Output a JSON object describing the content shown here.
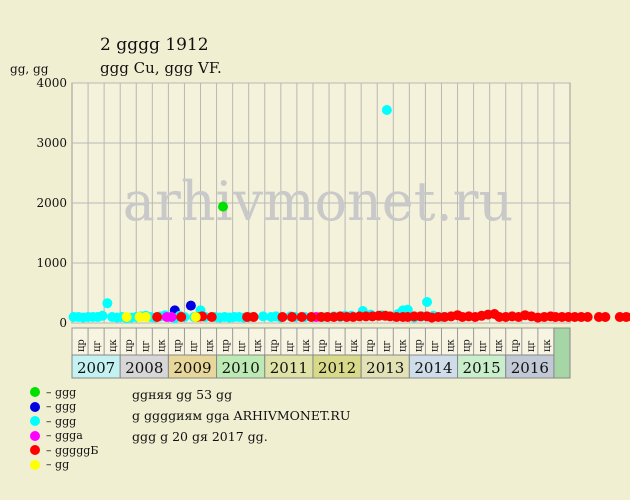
{
  "title_line1": "2 ցցցց 1912",
  "title_line2": "ցցց Cu, ցցց VF.",
  "ylabel": "ցց, ցց",
  "watermark": "arhivmonet.ru",
  "legend": [
    {
      "label": "– ցցց",
      "color": "#00e000"
    },
    {
      "label": "– ցցց",
      "color": "#0000e0"
    },
    {
      "label": "– ցցց",
      "color": "#00ffff"
    },
    {
      "label": "– ցցցa",
      "color": "#ff00ff"
    },
    {
      "label": "– ցցցցցБ",
      "color": "#ff0000"
    },
    {
      "label": "– ցց",
      "color": "#ffff00"
    }
  ],
  "info": {
    "line1": "ցցняя ցց 53 ցց",
    "line2": "ց ցցցցиям ցցa ARHIVMONET.RU",
    "line3": "ցցց ց 20 ցя 2017 ցց."
  },
  "chart_data": {
    "type": "scatter",
    "ylim": [
      0,
      4000
    ],
    "yticks": [
      0,
      1000,
      2000,
      3000,
      4000
    ],
    "grid": true,
    "years": [
      {
        "year": "2007",
        "color": "#c4f1f1"
      },
      {
        "year": "2008",
        "color": "#d7d7d7"
      },
      {
        "year": "2009",
        "color": "#e8d79a"
      },
      {
        "year": "2010",
        "color": "#bdeab4"
      },
      {
        "year": "2011",
        "color": "#dfe3a8"
      },
      {
        "year": "2012",
        "color": "#d9d98a"
      },
      {
        "year": "2013",
        "color": "#e2e2b6"
      },
      {
        "year": "2014",
        "color": "#cfdcea"
      },
      {
        "year": "2015",
        "color": "#c8eecb"
      },
      {
        "year": "2016",
        "color": "#c2c9d6"
      }
    ],
    "last_column_color": "#a6d6a6",
    "periods": [
      "цр",
      "цг",
      "цк",
      "цр",
      "цг",
      "цк",
      "цр",
      "цг",
      "цк",
      "цр",
      "цг",
      "цк",
      "цр",
      "цг",
      "цк",
      "цр",
      "цг",
      "цк",
      "цр",
      "цг",
      "цк",
      "цр",
      "цг",
      "цк",
      "цр",
      "цг",
      "цк",
      "цр",
      "цг",
      "цк"
    ],
    "series": [
      {
        "name": "ցցց",
        "color": "#00e000",
        "points": [
          [
            9.4,
            1940
          ]
        ]
      },
      {
        "name": "ցցց",
        "color": "#0000e0",
        "points": [
          [
            6.4,
            210
          ],
          [
            7.4,
            290
          ]
        ]
      },
      {
        "name": "ցցց",
        "color": "#00ffff",
        "points": [
          [
            0.1,
            100
          ],
          [
            0.4,
            100
          ],
          [
            0.7,
            90
          ],
          [
            1.0,
            100
          ],
          [
            1.3,
            100
          ],
          [
            1.6,
            100
          ],
          [
            1.9,
            120
          ],
          [
            2.2,
            330
          ],
          [
            2.5,
            100
          ],
          [
            2.8,
            90
          ],
          [
            3.1,
            100
          ],
          [
            3.4,
            80
          ],
          [
            3.7,
            90
          ],
          [
            4.0,
            100
          ],
          [
            4.3,
            110
          ],
          [
            4.6,
            120
          ],
          [
            4.9,
            100
          ],
          [
            5.2,
            90
          ],
          [
            5.5,
            110
          ],
          [
            5.8,
            130
          ],
          [
            6.1,
            100
          ],
          [
            6.4,
            80
          ],
          [
            6.7,
            120
          ],
          [
            7.0,
            100
          ],
          [
            7.6,
            100
          ],
          [
            8.0,
            210
          ],
          [
            8.3,
            100
          ],
          [
            8.9,
            100
          ],
          [
            9.2,
            90
          ],
          [
            9.5,
            100
          ],
          [
            9.8,
            90
          ],
          [
            10.1,
            100
          ],
          [
            10.4,
            100
          ],
          [
            10.7,
            90
          ],
          [
            11.0,
            100
          ],
          [
            11.3,
            100
          ],
          [
            11.9,
            110
          ],
          [
            12.4,
            100
          ],
          [
            12.7,
            110
          ],
          [
            13.0,
            90
          ],
          [
            13.6,
            110
          ],
          [
            13.9,
            100
          ],
          [
            14.5,
            100
          ],
          [
            15.6,
            100
          ],
          [
            16.3,
            110
          ],
          [
            16.7,
            100
          ],
          [
            17.0,
            120
          ],
          [
            17.4,
            120
          ],
          [
            18.1,
            200
          ],
          [
            18.6,
            140
          ],
          [
            19.3,
            130
          ],
          [
            19.6,
            3550
          ],
          [
            20.3,
            150
          ],
          [
            20.6,
            210
          ],
          [
            20.9,
            220
          ],
          [
            21.3,
            90
          ],
          [
            21.8,
            110
          ],
          [
            22.1,
            350
          ],
          [
            22.5,
            120
          ],
          [
            23.1,
            100
          ]
        ]
      },
      {
        "name": "ցցցa",
        "color": "#ff00ff",
        "points": [
          [
            5.9,
            100
          ],
          [
            6.2,
            100
          ],
          [
            15.2,
            100
          ]
        ]
      },
      {
        "name": "ցցցցցБ",
        "color": "#ff0000",
        "points": [
          [
            5.3,
            100
          ],
          [
            6.8,
            100
          ],
          [
            7.8,
            100
          ],
          [
            8.1,
            110
          ],
          [
            8.7,
            100
          ],
          [
            10.9,
            100
          ],
          [
            11.3,
            100
          ],
          [
            13.1,
            100
          ],
          [
            13.7,
            100
          ],
          [
            14.3,
            100
          ],
          [
            14.9,
            100
          ],
          [
            15.5,
            100
          ],
          [
            15.9,
            100
          ],
          [
            16.3,
            100
          ],
          [
            16.7,
            110
          ],
          [
            17.1,
            100
          ],
          [
            17.5,
            100
          ],
          [
            17.9,
            110
          ],
          [
            18.3,
            110
          ],
          [
            18.7,
            110
          ],
          [
            19.1,
            120
          ],
          [
            19.5,
            120
          ],
          [
            19.8,
            110
          ],
          [
            20.2,
            100
          ],
          [
            20.6,
            100
          ],
          [
            20.9,
            100
          ],
          [
            21.3,
            110
          ],
          [
            21.7,
            110
          ],
          [
            22.1,
            110
          ],
          [
            22.4,
            90
          ],
          [
            22.8,
            100
          ],
          [
            23.2,
            100
          ],
          [
            23.6,
            110
          ],
          [
            24.0,
            130
          ],
          [
            24.3,
            100
          ],
          [
            24.7,
            110
          ],
          [
            25.1,
            100
          ],
          [
            25.5,
            120
          ],
          [
            25.9,
            140
          ],
          [
            26.3,
            150
          ],
          [
            26.6,
            100
          ],
          [
            27.0,
            100
          ],
          [
            27.4,
            110
          ],
          [
            27.8,
            100
          ],
          [
            28.2,
            130
          ],
          [
            28.6,
            110
          ],
          [
            29.0,
            90
          ],
          [
            29.4,
            100
          ],
          [
            29.8,
            110
          ],
          [
            30.1,
            100
          ],
          [
            30.5,
            100
          ],
          [
            30.9,
            100
          ],
          [
            31.3,
            100
          ],
          [
            31.7,
            100
          ],
          [
            32.1,
            100
          ],
          [
            32.8,
            100
          ],
          [
            33.2,
            100
          ],
          [
            34.1,
            100
          ],
          [
            34.5,
            100
          ],
          [
            34.9,
            100
          ],
          [
            35.3,
            140
          ],
          [
            35.7,
            100
          ],
          [
            36.1,
            120
          ]
        ]
      },
      {
        "name": "ցց",
        "color": "#ffff00",
        "points": [
          [
            3.4,
            100
          ],
          [
            4.2,
            100
          ],
          [
            4.6,
            100
          ],
          [
            7.7,
            100
          ]
        ]
      }
    ]
  }
}
